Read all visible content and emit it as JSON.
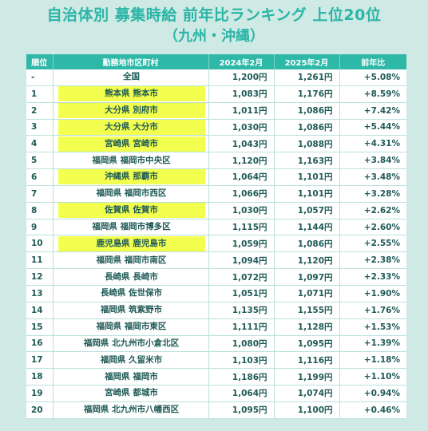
{
  "title": {
    "line1": "自治体別 募集時給 前年比ランキング 上位20位",
    "line2": "（九州・沖縄）"
  },
  "headers": [
    "順位",
    "勤務地市区町村",
    "2024年2月",
    "2025年2月",
    "前年比"
  ],
  "colors": {
    "title": "#2bb5a6",
    "header_bg": "#2eb8a8",
    "highlight": "#f3ff4f",
    "page_bg": "#cfe9e4"
  },
  "rows": [
    {
      "rank": "-",
      "area": "全国",
      "v2024": "1,200円",
      "v2025": "1,261円",
      "yoy": "+5.08%",
      "highlight": false
    },
    {
      "rank": "1",
      "area": "熊本県 熊本市",
      "v2024": "1,083円",
      "v2025": "1,176円",
      "yoy": "+8.59%",
      "highlight": true
    },
    {
      "rank": "2",
      "area": "大分県 別府市",
      "v2024": "1,011円",
      "v2025": "1,086円",
      "yoy": "+7.42%",
      "highlight": true
    },
    {
      "rank": "3",
      "area": "大分県 大分市",
      "v2024": "1,030円",
      "v2025": "1,086円",
      "yoy": "+5.44%",
      "highlight": true
    },
    {
      "rank": "4",
      "area": "宮崎県 宮崎市",
      "v2024": "1,043円",
      "v2025": "1,088円",
      "yoy": "+4.31%",
      "highlight": true
    },
    {
      "rank": "5",
      "area": "福岡県 福岡市中央区",
      "v2024": "1,120円",
      "v2025": "1,163円",
      "yoy": "+3.84%",
      "highlight": false
    },
    {
      "rank": "6",
      "area": "沖縄県 那覇市",
      "v2024": "1,064円",
      "v2025": "1,101円",
      "yoy": "+3.48%",
      "highlight": true
    },
    {
      "rank": "7",
      "area": "福岡県 福岡市西区",
      "v2024": "1,066円",
      "v2025": "1,101円",
      "yoy": "+3.28%",
      "highlight": false
    },
    {
      "rank": "8",
      "area": "佐賀県 佐賀市",
      "v2024": "1,030円",
      "v2025": "1,057円",
      "yoy": "+2.62%",
      "highlight": true
    },
    {
      "rank": "9",
      "area": "福岡県 福岡市博多区",
      "v2024": "1,115円",
      "v2025": "1,144円",
      "yoy": "+2.60%",
      "highlight": false
    },
    {
      "rank": "10",
      "area": "鹿児島県 鹿児島市",
      "v2024": "1,059円",
      "v2025": "1,086円",
      "yoy": "+2.55%",
      "highlight": true
    },
    {
      "rank": "11",
      "area": "福岡県 福岡市南区",
      "v2024": "1,094円",
      "v2025": "1,120円",
      "yoy": "+2.38%",
      "highlight": false
    },
    {
      "rank": "12",
      "area": "長崎県 長崎市",
      "v2024": "1,072円",
      "v2025": "1,097円",
      "yoy": "+2.33%",
      "highlight": false
    },
    {
      "rank": "13",
      "area": "長崎県 佐世保市",
      "v2024": "1,051円",
      "v2025": "1,071円",
      "yoy": "+1.90%",
      "highlight": false
    },
    {
      "rank": "14",
      "area": "福岡県 筑紫野市",
      "v2024": "1,135円",
      "v2025": "1,155円",
      "yoy": "+1.76%",
      "highlight": false
    },
    {
      "rank": "15",
      "area": "福岡県 福岡市東区",
      "v2024": "1,111円",
      "v2025": "1,128円",
      "yoy": "+1.53%",
      "highlight": false
    },
    {
      "rank": "16",
      "area": "福岡県 北九州市小倉北区",
      "v2024": "1,080円",
      "v2025": "1,095円",
      "yoy": "+1.39%",
      "highlight": false
    },
    {
      "rank": "17",
      "area": "福岡県 久留米市",
      "v2024": "1,103円",
      "v2025": "1,116円",
      "yoy": "+1.18%",
      "highlight": false
    },
    {
      "rank": "18",
      "area": "福岡県 福岡市",
      "v2024": "1,186円",
      "v2025": "1,199円",
      "yoy": "+1.10%",
      "highlight": false
    },
    {
      "rank": "19",
      "area": "宮崎県 都城市",
      "v2024": "1,064円",
      "v2025": "1,074円",
      "yoy": "+0.94%",
      "highlight": false
    },
    {
      "rank": "20",
      "area": "福岡県 北九州市八幡西区",
      "v2024": "1,095円",
      "v2025": "1,100円",
      "yoy": "+0.46%",
      "highlight": false
    }
  ]
}
